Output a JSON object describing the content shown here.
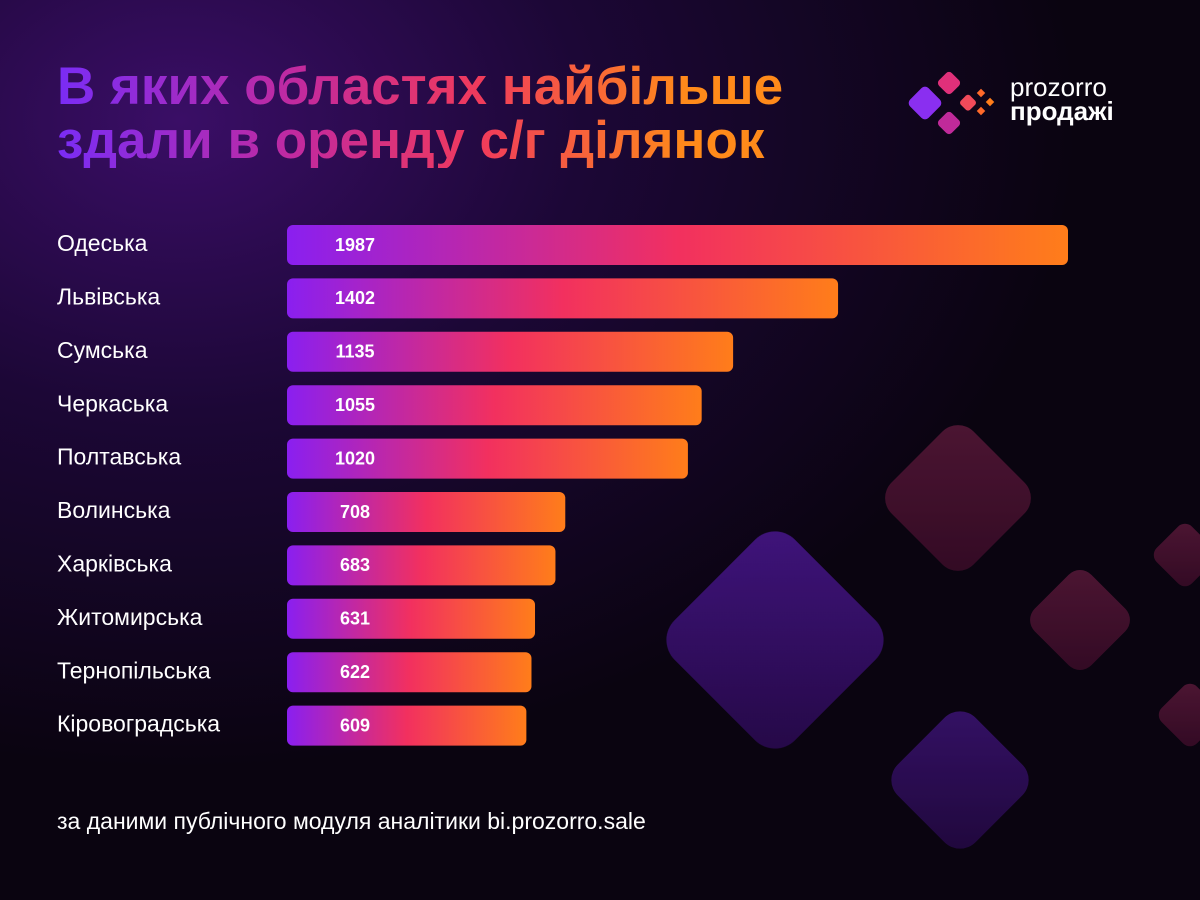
{
  "chart_data": {
    "type": "hbar",
    "title": "В яких областях найбільше здали в оренду с/г ділянок",
    "categories": [
      "Одеська",
      "Львівська",
      "Сумська",
      "Черкаська",
      "Полтавська",
      "Волинська",
      "Харківська",
      "Житомирська",
      "Тернопільська",
      "Кіровоградська"
    ],
    "values": [
      1987,
      1402,
      1135,
      1055,
      1020,
      708,
      683,
      631,
      622,
      609
    ],
    "color_stops": [
      "#8a1ff0",
      "#f2305f",
      "#ff7d1a"
    ],
    "source": "за даними публічного модуля аналітики bi.prozorro.sale"
  },
  "logo": {
    "line1": "prozorro",
    "line2": "продажі"
  }
}
